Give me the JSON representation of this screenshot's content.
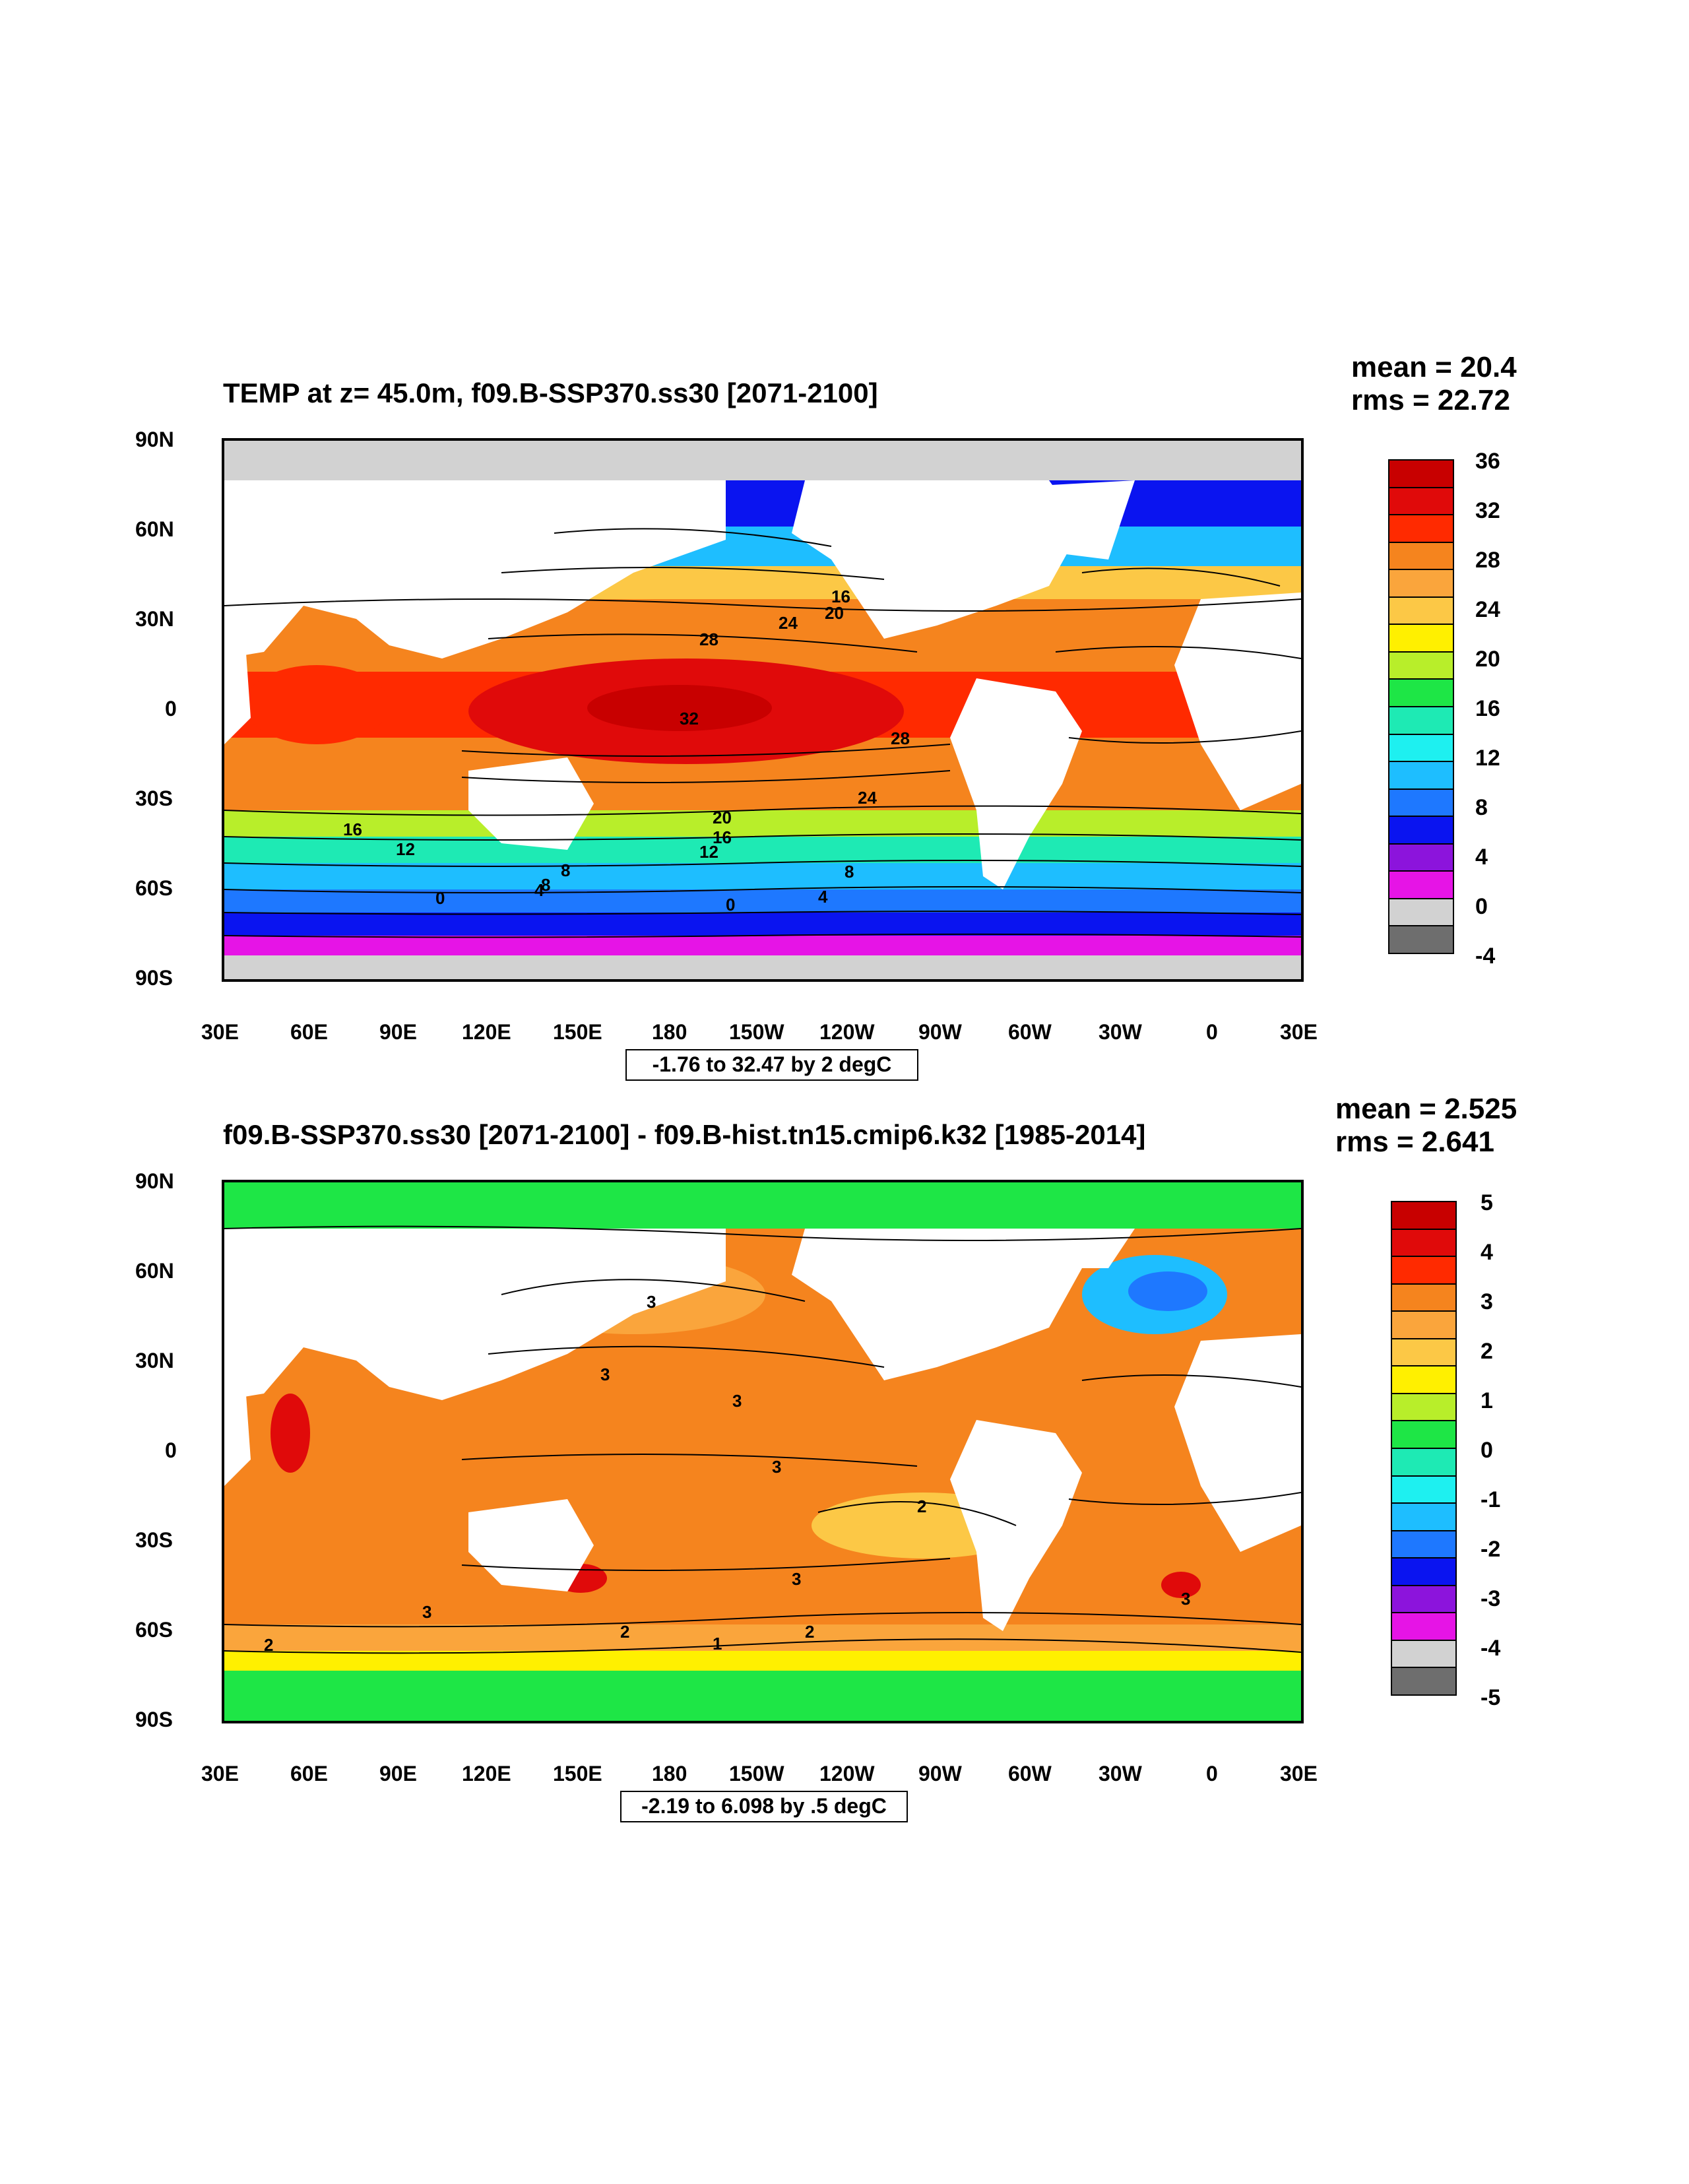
{
  "panels": [
    {
      "title": "TEMP at z=  45.0m, f09.B-SSP370.ss30 [2071-2100]",
      "mean": "mean = 20.4",
      "rms": "rms = 22.72",
      "range_label": "-1.76 to 32.47 by 2 degC",
      "lat_labels": [
        "90N",
        "60N",
        "30N",
        "0",
        "30S",
        "60S",
        "90S"
      ],
      "lon_labels": [
        "30E",
        "60E",
        "90E",
        "120E",
        "150E",
        "180",
        "150W",
        "120W",
        "90W",
        "60W",
        "30W",
        "0",
        "30E"
      ],
      "colorbar_labels": [
        "36",
        "32",
        "28",
        "24",
        "20",
        "16",
        "12",
        "8",
        "4",
        "0",
        "-4"
      ],
      "colorbar_colors": [
        "#c80000",
        "#e00a0a",
        "#ff2a00",
        "#f5841e",
        "#faa53c",
        "#fcc846",
        "#fff000",
        "#b8ee2a",
        "#1ee646",
        "#1eeab4",
        "#1ef0f0",
        "#1ebeff",
        "#1e78ff",
        "#0a14f0",
        "#8c14dc",
        "#e614e6",
        "#d2d2d2",
        "#6e6e6e"
      ],
      "contour_labels": [
        "32",
        "28",
        "24",
        "20",
        "16",
        "28",
        "24",
        "20",
        "16",
        "12",
        "12",
        "8",
        "8",
        "8",
        "4",
        "4",
        "0",
        "0",
        "16"
      ]
    },
    {
      "title": "f09.B-SSP370.ss30 [2071-2100] - f09.B-hist.tn15.cmip6.k32 [1985-2014]",
      "mean": "mean = 2.525",
      "rms": "rms = 2.641",
      "range_label": "-2.19 to 6.098 by .5 degC",
      "lat_labels": [
        "90N",
        "60N",
        "30N",
        "0",
        "30S",
        "60S",
        "90S"
      ],
      "lon_labels": [
        "30E",
        "60E",
        "90E",
        "120E",
        "150E",
        "180",
        "150W",
        "120W",
        "90W",
        "60W",
        "30W",
        "0",
        "30E"
      ],
      "colorbar_labels": [
        "5",
        "4",
        "3",
        "2",
        "1",
        "0",
        "-1",
        "-2",
        "-3",
        "-4",
        "-5"
      ],
      "colorbar_colors": [
        "#c80000",
        "#e00a0a",
        "#ff2a00",
        "#f5841e",
        "#faa53c",
        "#fcc846",
        "#fff000",
        "#b8ee2a",
        "#1ee646",
        "#1eeab4",
        "#1ef0f0",
        "#1ebeff",
        "#1e78ff",
        "#0a14f0",
        "#8c14dc",
        "#e614e6",
        "#d2d2d2",
        "#6e6e6e"
      ],
      "contour_labels": [
        "3",
        "3",
        "3",
        "3",
        "2",
        "3",
        "3",
        "2",
        "2",
        "2",
        "1",
        "3"
      ]
    }
  ],
  "palette": {
    "land": "#ffffff",
    "ice": "#d2d2d2"
  }
}
